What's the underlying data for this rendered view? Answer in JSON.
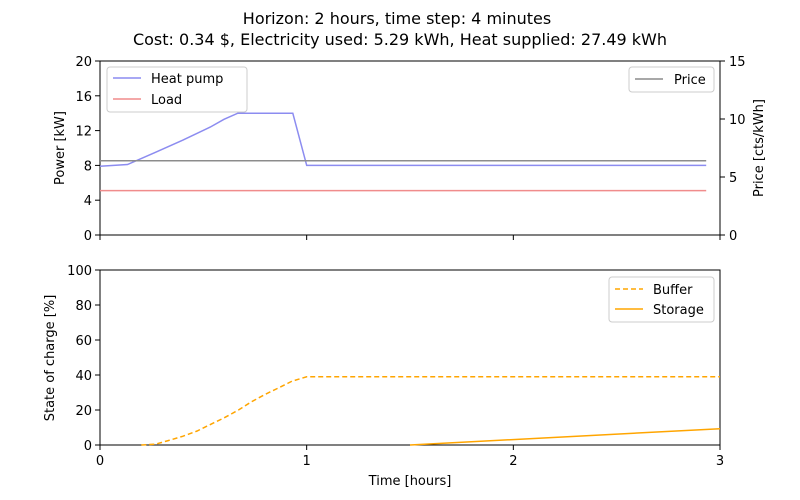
{
  "figure": {
    "title_line1": "Horizon: 2 hours, time step: 4 minutes",
    "title_line2": "Cost: 0.34 $, Electricity used: 5.29 kWh, Heat supplied: 27.49 kWh"
  },
  "chart_data": [
    {
      "type": "line",
      "ylabel": "Power [kW]",
      "ylabel_right": "Price [cts/kWh]",
      "xlim": [
        0,
        3
      ],
      "ylim": [
        0,
        20
      ],
      "ylim_right": [
        0,
        15
      ],
      "x_ticks": [
        0,
        1,
        2,
        3
      ],
      "y_ticks": [
        "0",
        "4",
        "8",
        "12",
        "16",
        "20"
      ],
      "y_ticks_right": [
        "0",
        "5",
        "10",
        "15"
      ],
      "grid": false,
      "legend_left": "upper-left",
      "legend_right": "upper-right",
      "series": [
        {
          "name": "Heat pump",
          "axis": "left",
          "color": "#8c8cf0",
          "x": [
            0,
            0.133,
            0.267,
            0.4,
            0.533,
            0.6,
            0.667,
            0.733,
            0.8,
            0.867,
            0.933,
            1.0,
            1.067,
            2.933
          ],
          "y": [
            7.9,
            8.1,
            9.5,
            10.9,
            12.4,
            13.3,
            14.0,
            14.0,
            14.0,
            14.0,
            14.0,
            8.0,
            8.0,
            8.0
          ]
        },
        {
          "name": "Load",
          "axis": "left",
          "color": "#f08c8c",
          "x": [
            0,
            2.933
          ],
          "y": [
            5.1,
            5.1
          ]
        },
        {
          "name": "Price",
          "axis": "right",
          "color": "#8c8c8c",
          "x": [
            0,
            2.933
          ],
          "y": [
            6.4,
            6.4
          ]
        }
      ]
    },
    {
      "type": "line",
      "xlabel": "Time [hours]",
      "ylabel": "State of charge [%]",
      "xlim": [
        0,
        3
      ],
      "ylim": [
        0,
        100
      ],
      "x_ticks": [
        "0",
        "1",
        "2",
        "3"
      ],
      "y_ticks": [
        "0",
        "20",
        "40",
        "60",
        "80",
        "100"
      ],
      "grid": false,
      "legend": "upper-right",
      "series": [
        {
          "name": "Buffer",
          "style": "dashed",
          "color": "#ffa500",
          "x": [
            0.2,
            0.27,
            0.33,
            0.4,
            0.47,
            0.53,
            0.6,
            0.67,
            0.73,
            0.8,
            0.87,
            0.93,
            1.0,
            1.07,
            3.0
          ],
          "y": [
            -1.0,
            0.5,
            2.5,
            5.0,
            8.0,
            11.5,
            15.5,
            20.0,
            24.5,
            29.0,
            33.0,
            36.5,
            39.0,
            39.0,
            39.0
          ],
          "style_note": "dashed"
        },
        {
          "name": "Storage",
          "style": "solid",
          "color": "#ffa500",
          "x": [
            1.5,
            3.0
          ],
          "y": [
            0.0,
            9.3
          ]
        }
      ]
    }
  ]
}
